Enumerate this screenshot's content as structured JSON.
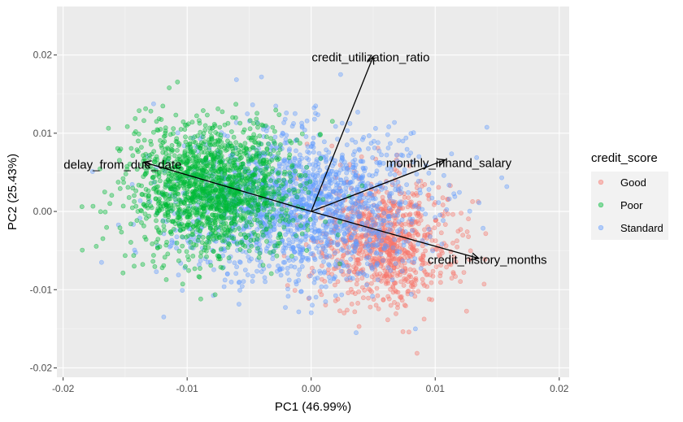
{
  "chart_data": {
    "type": "scatter",
    "subtype": "pca-biplot",
    "xlabel": "PC1 (46.99%)",
    "ylabel": "PC2 (25.43%)",
    "xlim": [
      -0.0205,
      0.0208
    ],
    "ylim": [
      -0.0212,
      0.0262
    ],
    "x_ticks": [
      {
        "value": -0.02,
        "label": "-0.02"
      },
      {
        "value": -0.01,
        "label": "-0.01"
      },
      {
        "value": 0.0,
        "label": "0.00"
      },
      {
        "value": 0.01,
        "label": "0.01"
      },
      {
        "value": 0.02,
        "label": "0.02"
      }
    ],
    "y_ticks": [
      {
        "value": -0.02,
        "label": "-0.02"
      },
      {
        "value": -0.01,
        "label": "-0.01"
      },
      {
        "value": 0.0,
        "label": "0.00"
      },
      {
        "value": 0.01,
        "label": "0.01"
      },
      {
        "value": 0.02,
        "label": "0.02"
      }
    ],
    "grid": true,
    "background": "#ebebeb",
    "legend": {
      "title": "credit_score",
      "placement": "right",
      "entries": [
        {
          "label": "Good",
          "color": "#f8766d"
        },
        {
          "label": "Poor",
          "color": "#00ba38"
        },
        {
          "label": "Standard",
          "color": "#619cff"
        }
      ]
    },
    "series_clusters": [
      {
        "name": "Good",
        "color": "#f8766d",
        "cx": 0.006,
        "cy": -0.004,
        "sx": 0.0045,
        "sy": 0.0065,
        "approx_points": 900
      },
      {
        "name": "Standard",
        "color": "#619cff",
        "cx": -0.001,
        "cy": 0.001,
        "sx": 0.008,
        "sy": 0.008,
        "approx_points": 1700
      },
      {
        "name": "Poor",
        "color": "#00ba38",
        "cx": -0.008,
        "cy": 0.003,
        "sx": 0.0055,
        "sy": 0.007,
        "approx_points": 1600
      }
    ],
    "loadings": [
      {
        "name": "credit_utilization_ratio",
        "x": 0.005,
        "y": 0.0198
      },
      {
        "name": "delay_from_due_date",
        "x": -0.0135,
        "y": 0.0063
      },
      {
        "name": "monthly_inhand_salary",
        "x": 0.0108,
        "y": 0.0066
      },
      {
        "name": "credit_history_months",
        "x": 0.0135,
        "y": -0.006
      }
    ],
    "loading_labels": [
      {
        "text": "credit_utilization_ratio",
        "x": 0.0048,
        "y": 0.0197
      },
      {
        "text": "delay_from_due_date",
        "x": -0.0152,
        "y": 0.006
      },
      {
        "text": "monthly_inhand_salary",
        "x": 0.0111,
        "y": 0.0062
      },
      {
        "text": "credit_history_months",
        "x": 0.0142,
        "y": -0.0062
      }
    ]
  }
}
